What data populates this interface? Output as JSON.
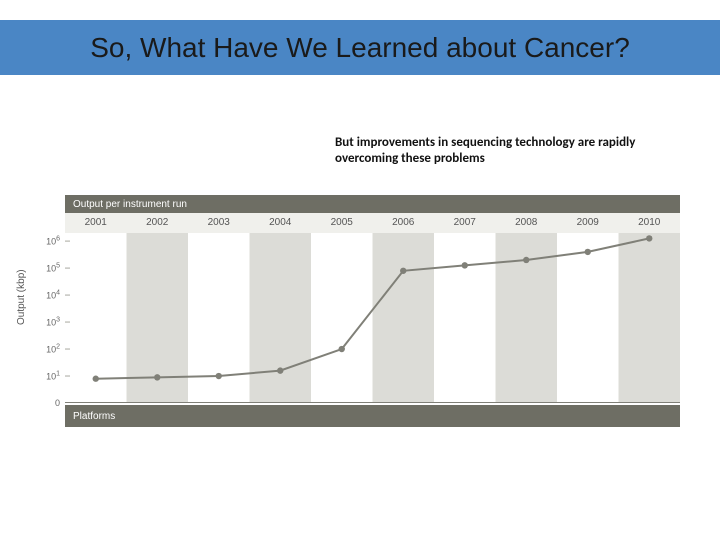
{
  "title_bar": {
    "background": "#4a86c5",
    "text": "So, What Have We Learned about Cancer?",
    "text_color": "#1a1a1a"
  },
  "subtitle": "But improvements in sequencing technology are rapidly overcoming these problems",
  "chart": {
    "type": "line",
    "header_label": "Output per instrument run",
    "header_bg": "#6e6e64",
    "footer_label": "Platforms",
    "footer_bg": "#6e6e64",
    "ylabel": "Output (kbp)",
    "years": [
      "2001",
      "2002",
      "2003",
      "2004",
      "2005",
      "2006",
      "2007",
      "2008",
      "2009",
      "2010"
    ],
    "band_colors": {
      "even": "#ffffff",
      "odd": "#dcdcd7"
    },
    "year_band_bg": "#f0f0ec",
    "yticks_exp": [
      0,
      1,
      2,
      3,
      4,
      5,
      6
    ],
    "ylim_exp": [
      0,
      6.3
    ],
    "values_exp": [
      0.9,
      0.95,
      1.0,
      1.2,
      2.0,
      4.9,
      5.1,
      5.3,
      5.6,
      6.1
    ],
    "line_color": "#808078",
    "line_width": 2,
    "marker_color": "#808078",
    "marker_radius": 3.2,
    "tick_color": "#a8a8a0",
    "axis_color": "#808078",
    "label_fontsize": 10
  }
}
